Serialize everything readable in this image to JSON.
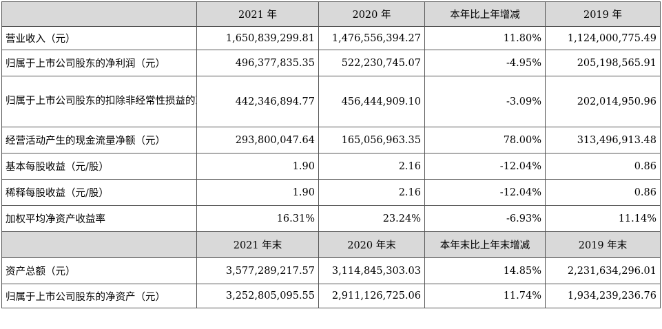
{
  "header1": [
    "",
    "2021 年",
    "2020 年",
    "本年比上年增减",
    "2019 年"
  ],
  "rows1": [
    {
      "label": "营业收入（元）",
      "v2021": "1,650,839,299.81",
      "v2020": "1,476,556,394.27",
      "change": "11.80%",
      "v2019": "1,124,000,775.49"
    },
    {
      "label": "归属于上市公司股东的净利润（元）",
      "v2021": "496,377,835.35",
      "v2020": "522,230,745.07",
      "change": "-4.95%",
      "v2019": "205,198,565.91"
    },
    {
      "label": "归属于上市公司股东的扣除非经常性损益的净利润（元）",
      "v2021": "442,346,894.77",
      "v2020": "456,444,909.10",
      "change": "-3.09%",
      "v2019": "202,014,950.96"
    },
    {
      "label": "经营活动产生的现金流量净额（元）",
      "v2021": "293,800,047.64",
      "v2020": "165,056,963.35",
      "change": "78.00%",
      "v2019": "313,496,913.48"
    },
    {
      "label": "基本每股收益（元/股）",
      "v2021": "1.90",
      "v2020": "2.16",
      "change": "-12.04%",
      "v2019": "0.86"
    },
    {
      "label": "稀释每股收益（元/股）",
      "v2021": "1.90",
      "v2020": "2.16",
      "change": "-12.04%",
      "v2019": "0.86"
    },
    {
      "label": "加权平均净资产收益率",
      "v2021": "16.31%",
      "v2020": "23.24%",
      "change": "-6.93%",
      "v2019": "11.14%"
    }
  ],
  "header2": [
    "",
    "2021 年末",
    "2020 年末",
    "本年末比上年末增减",
    "2019 年末"
  ],
  "rows2": [
    {
      "label": "资产总额（元）",
      "v2021": "3,577,289,217.57",
      "v2020": "3,114,845,303.03",
      "change": "14.85%",
      "v2019": "2,231,634,296.01"
    },
    {
      "label": "归属于上市公司股东的净资产（元）",
      "v2021": "3,252,805,095.55",
      "v2020": "2,911,126,725.06",
      "change": "11.74%",
      "v2019": "1,934,239,236.76"
    }
  ]
}
